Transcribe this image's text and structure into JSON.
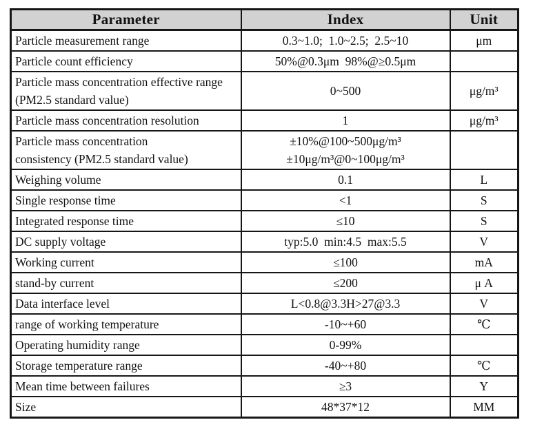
{
  "table": {
    "title": "sensor-specification-table",
    "headers": {
      "parameter": "Parameter",
      "index": "Index",
      "unit": "Unit"
    },
    "colors": {
      "header_bg": "#d2d2d2",
      "border": "#161616",
      "text": "#111111",
      "page_bg": "#ffffff"
    },
    "rows": [
      {
        "parameter": "Particle measurement range",
        "index": "0.3~1.0;  1.0~2.5;  2.5~10",
        "unit": "μm"
      },
      {
        "parameter": "Particle count efficiency",
        "index": "50%@0.3μm  98%@≥0.5μm",
        "unit": ""
      },
      {
        "parameter": "Particle mass concentration effective range (PM2.5 standard value)",
        "index": "0~500",
        "unit": "μg/m³"
      },
      {
        "parameter": "Particle mass concentration resolution",
        "index": "1",
        "unit": "μg/m³"
      },
      {
        "parameter": "Particle mass concentration\nconsistency (PM2.5 standard value)",
        "index": "±10%@100~500μg/m³\n±10μg/m³@0~100μg/m³",
        "unit": ""
      },
      {
        "parameter": "Weighing volume",
        "index": "0.1",
        "unit": "L"
      },
      {
        "parameter": "Single response time",
        "index": "<1",
        "unit": "S"
      },
      {
        "parameter": "Integrated response time",
        "index": "≤10",
        "unit": "S"
      },
      {
        "parameter": "DC supply voltage",
        "index": "typ:5.0  min:4.5  max:5.5",
        "unit": "V"
      },
      {
        "parameter": "Working current",
        "index": "≤100",
        "unit": "mA"
      },
      {
        "parameter": "stand-by current",
        "index": "≤200",
        "unit": "μ A"
      },
      {
        "parameter": "Data interface level",
        "index": "L<0.8@3.3H>27@3.3",
        "unit": "V"
      },
      {
        "parameter": "range of working temperature",
        "index": "-10~+60",
        "unit": "℃"
      },
      {
        "parameter": "Operating humidity range",
        "index": "0-99%",
        "unit": ""
      },
      {
        "parameter": "Storage temperature range",
        "index": "-40~+80",
        "unit": "℃"
      },
      {
        "parameter": "Mean time between failures",
        "index": "≥3",
        "unit": "Y"
      },
      {
        "parameter": "Size",
        "index": "48*37*12",
        "unit": "MM"
      }
    ]
  }
}
